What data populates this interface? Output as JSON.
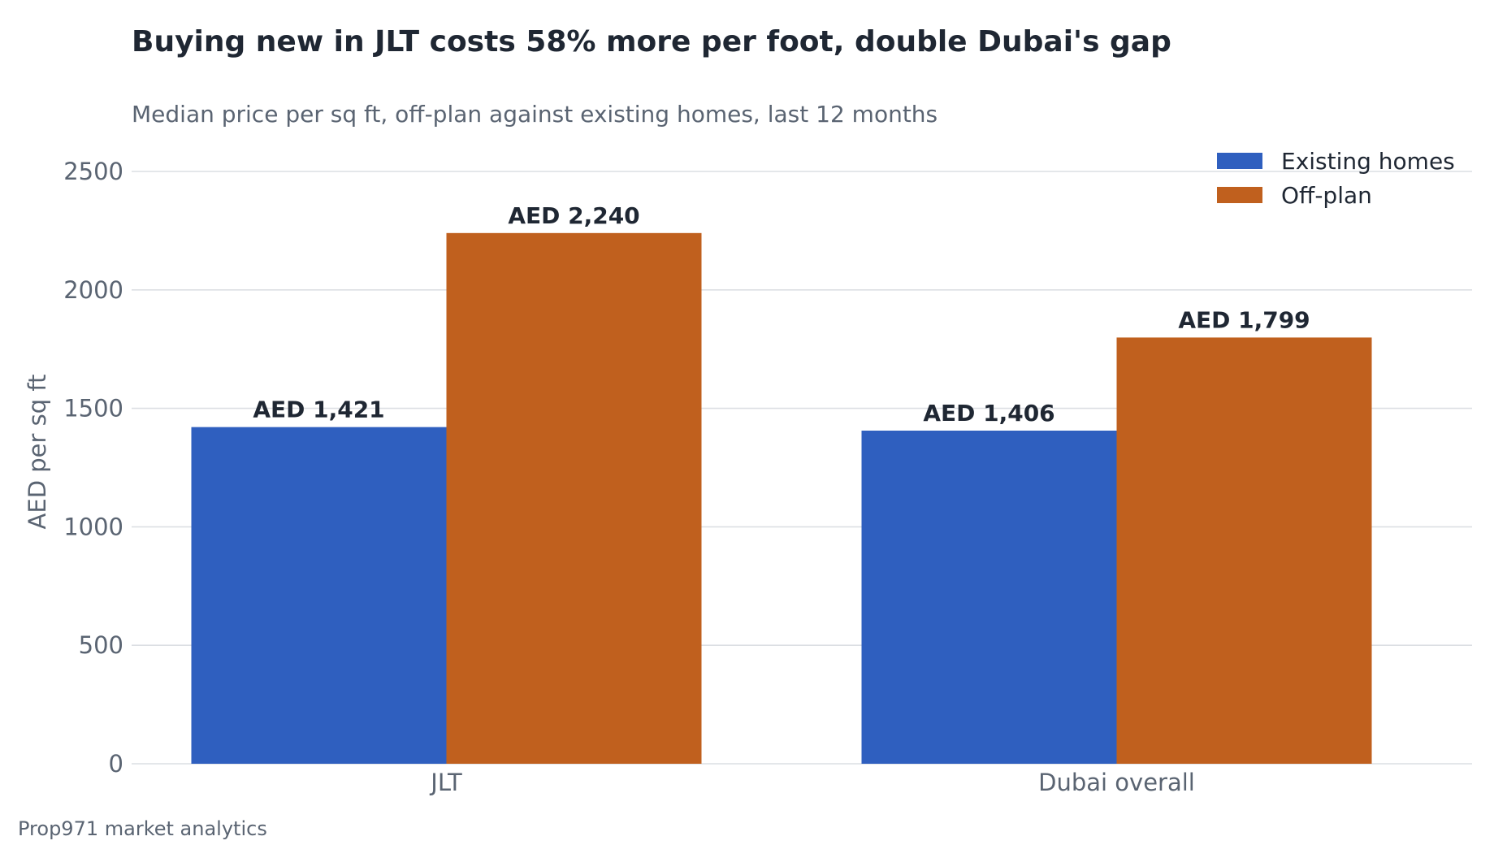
{
  "chart_data": {
    "type": "bar",
    "title": "Buying new in JLT costs 58% more per foot, double Dubai's gap",
    "subtitle": "Median price per sq ft, off-plan against existing homes, last 12 months",
    "xlabel": "",
    "ylabel": "AED per sq ft",
    "categories": [
      "JLT",
      "Dubai overall"
    ],
    "series": [
      {
        "name": "Existing homes",
        "color": "#2f5fbf",
        "values": [
          1421,
          1406
        ],
        "labels": [
          "AED 1,421",
          "AED 1,406"
        ]
      },
      {
        "name": "Off-plan",
        "color": "#c0601e",
        "values": [
          2240,
          1799
        ],
        "labels": [
          "AED 2,240",
          "AED 1,799"
        ]
      }
    ],
    "ylim": [
      0,
      2500
    ],
    "yticks": [
      0,
      500,
      1000,
      1500,
      2000,
      2500
    ],
    "grid": true,
    "legend_position": "top-right",
    "source": "Prop971 market analytics"
  }
}
